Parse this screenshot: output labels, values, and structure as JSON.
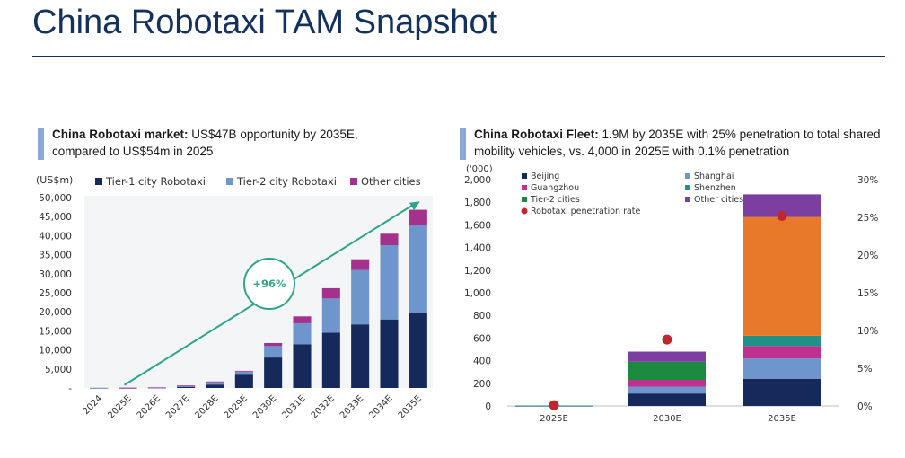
{
  "page": {
    "title": "China Robotaxi TAM Snapshot"
  },
  "left_panel": {
    "heading_bold": "China Robotaxi market:",
    "heading_rest": " US$47B opportunity by 2035E, compared to US$54m in 2025"
  },
  "right_panel": {
    "heading_bold": "China Robotaxi Fleet:",
    "heading_rest": " 1.9M by 2035E with 25% penetration to total shared mobility vehicles, vs. 4,000 in 2025E with 0.1% penetration"
  },
  "chart_data": [
    {
      "type": "bar",
      "stacked": true,
      "ylabel": "(US$m)",
      "ylim": [
        0,
        50000
      ],
      "yticks": [
        "-",
        "5,000",
        "10,000",
        "15,000",
        "20,000",
        "25,000",
        "30,000",
        "35,000",
        "40,000",
        "45,000",
        "50,000"
      ],
      "categories": [
        "2024",
        "2025E",
        "2026E",
        "2027E",
        "2028E",
        "2029E",
        "2030E",
        "2031E",
        "2032E",
        "2033E",
        "2034E",
        "2035E"
      ],
      "series": [
        {
          "name": "Tier-1 city Robotaxi",
          "color": "#15295a",
          "values": [
            20,
            40,
            100,
            300,
            900,
            3500,
            8000,
            11500,
            14500,
            16700,
            18000,
            19800
          ]
        },
        {
          "name": "Tier-2 city Robotaxi",
          "color": "#6f96cc",
          "values": [
            5,
            10,
            30,
            250,
            600,
            800,
            3000,
            5500,
            9000,
            14300,
            19500,
            23000
          ]
        },
        {
          "name": "Other cities",
          "color": "#a4318c",
          "values": [
            0,
            4,
            10,
            100,
            200,
            200,
            800,
            1800,
            2700,
            2800,
            3000,
            4000
          ]
        }
      ],
      "legend_position": "top",
      "annotation": {
        "text": "+96%",
        "kind": "cagr-arrow",
        "from": "2025E",
        "to": "2035E",
        "color": "#2ea58a"
      }
    },
    {
      "type": "bar",
      "stacked": true,
      "ylabel": "('000)",
      "ylim": [
        0,
        2000
      ],
      "yticks": [
        "0",
        "200",
        "400",
        "600",
        "800",
        "1,000",
        "1,200",
        "1,400",
        "1,600",
        "1,800",
        "2,000"
      ],
      "y2lim": [
        0,
        30
      ],
      "y2ticks": [
        "0%",
        "5%",
        "10%",
        "15%",
        "20%",
        "25%",
        "30%"
      ],
      "categories": [
        "2025E",
        "2030E",
        "2035E"
      ],
      "series": [
        {
          "name": "Beijing",
          "color": "#15295a",
          "values": [
            1,
            110,
            240
          ]
        },
        {
          "name": "Shanghai",
          "color": "#6f96cc",
          "values": [
            1,
            60,
            180
          ]
        },
        {
          "name": "Guangzhou",
          "color": "#c0308f",
          "values": [
            1,
            60,
            110
          ]
        },
        {
          "name": "Shenzhen",
          "color": "#1f9187",
          "values": [
            1,
            0,
            90
          ]
        },
        {
          "name": "Tier-2 cities",
          "color": "#1b8a3e",
          "values": [
            0,
            160,
            0
          ]
        },
        {
          "name": "Other cities",
          "color": "#7a3fa0",
          "values": [
            0,
            90,
            1240
          ]
        },
        {
          "name": "Orange segment",
          "color": "#e8782a",
          "values": [
            0,
            0,
            0
          ]
        }
      ],
      "stack_order_2035": [
        "Beijing",
        "Shanghai",
        "Guangzhou",
        "Shenzhen",
        "Orange",
        "Other cities"
      ],
      "overlay_2035": {
        "orange": 1050,
        "purple_top": 200
      },
      "penetration": {
        "name": "Robotaxi penetration rate",
        "color": "#c0272d",
        "values": [
          0.1,
          8.8,
          25.2
        ]
      },
      "legend_position": "top-left"
    }
  ]
}
